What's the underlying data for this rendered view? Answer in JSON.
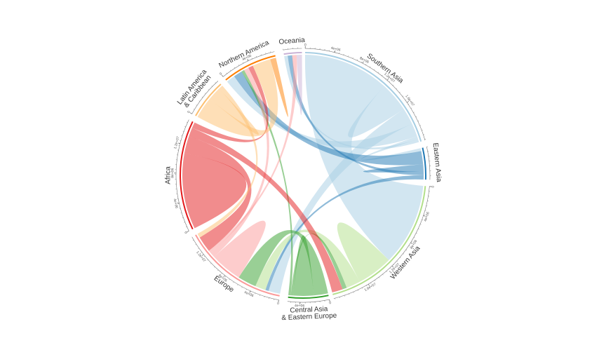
{
  "chart_data": {
    "type": "chord",
    "title": "",
    "regions": [
      {
        "key": "oceania",
        "label_lines": [
          "Oceania"
        ],
        "color": "#cab2d6",
        "ticks": []
      },
      {
        "key": "southern-asia",
        "label_lines": [
          "Southern Asia"
        ],
        "color": "#a6cee3",
        "ticks": [
          "0",
          "4e+06",
          "8e+06",
          "1.2e+07",
          "1.6e+07"
        ]
      },
      {
        "key": "eastern-asia",
        "label_lines": [
          "Eastern Asia"
        ],
        "color": "#1f78b4",
        "ticks": []
      },
      {
        "key": "western-asia",
        "label_lines": [
          "Western Asia"
        ],
        "color": "#b2df8a",
        "ticks": [
          "0",
          "4e+06",
          "8e+06",
          "1.2e+07",
          "1.6e+07"
        ]
      },
      {
        "key": "central-asia-eastern-europe",
        "label_lines": [
          "Central Asia",
          "& Eastern Europe"
        ],
        "color": "#33a02c",
        "ticks": [
          "0",
          "4e+06"
        ]
      },
      {
        "key": "europe",
        "label_lines": [
          "Europe"
        ],
        "color": "#fb9a99",
        "ticks": [
          "0",
          "4e+06",
          "8e+06",
          "1.2e+07"
        ]
      },
      {
        "key": "africa",
        "label_lines": [
          "Africa"
        ],
        "color": "#e31a1c",
        "ticks": [
          "0",
          "4e+06",
          "8e+06",
          "1.2e+07"
        ]
      },
      {
        "key": "latin-america",
        "label_lines": [
          "Latin America",
          "& Caribbean"
        ],
        "color": "#fdbf6f",
        "ticks": [
          "0"
        ]
      },
      {
        "key": "northern-america",
        "label_lines": [
          "Northern America"
        ],
        "color": "#ff7f00",
        "ticks": [
          "0",
          "4e+06"
        ]
      }
    ],
    "flows": [
      {
        "from": "southern-asia",
        "to": "western-asia",
        "value": 11.5
      },
      {
        "from": "southern-asia",
        "to": "southern-asia",
        "value": 2.0
      },
      {
        "from": "southern-asia",
        "to": "europe",
        "value": 2.2
      },
      {
        "from": "southern-asia",
        "to": "northern-america",
        "value": 1.8
      },
      {
        "from": "southern-asia",
        "to": "eastern-asia",
        "value": 0.4
      },
      {
        "from": "southern-asia",
        "to": "oceania",
        "value": 0.4
      },
      {
        "from": "eastern-asia",
        "to": "northern-america",
        "value": 1.8
      },
      {
        "from": "eastern-asia",
        "to": "eastern-asia",
        "value": 0.5
      },
      {
        "from": "eastern-asia",
        "to": "oceania",
        "value": 0.5
      },
      {
        "from": "eastern-asia",
        "to": "europe",
        "value": 0.6
      },
      {
        "from": "western-asia",
        "to": "western-asia",
        "value": 2.5
      },
      {
        "from": "western-asia",
        "to": "europe",
        "value": 2.0
      },
      {
        "from": "central-asia-eastern-europe",
        "to": "europe",
        "value": 3.5
      },
      {
        "from": "central-asia-eastern-europe",
        "to": "central-asia-eastern-europe",
        "value": 2.5
      },
      {
        "from": "central-asia-eastern-europe",
        "to": "western-asia",
        "value": 0.6
      },
      {
        "from": "central-asia-eastern-europe",
        "to": "northern-america",
        "value": 0.6
      },
      {
        "from": "europe",
        "to": "europe",
        "value": 3.0
      },
      {
        "from": "europe",
        "to": "northern-america",
        "value": 1.0
      },
      {
        "from": "europe",
        "to": "oceania",
        "value": 0.5
      },
      {
        "from": "africa",
        "to": "africa",
        "value": 6.5
      },
      {
        "from": "africa",
        "to": "europe",
        "value": 3.0
      },
      {
        "from": "africa",
        "to": "western-asia",
        "value": 1.5
      },
      {
        "from": "africa",
        "to": "northern-america",
        "value": 1.0
      },
      {
        "from": "latin-america",
        "to": "northern-america",
        "value": 3.8
      },
      {
        "from": "latin-america",
        "to": "latin-america",
        "value": 1.2
      },
      {
        "from": "latin-america",
        "to": "europe",
        "value": 0.8
      },
      {
        "from": "northern-america",
        "to": "northern-america",
        "value": 0.6
      },
      {
        "from": "oceania",
        "to": "oceania",
        "value": 0.3
      }
    ]
  }
}
